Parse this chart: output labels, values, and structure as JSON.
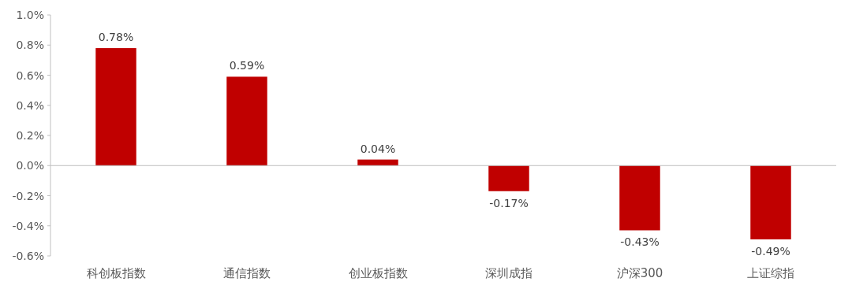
{
  "chart_data": {
    "type": "bar",
    "categories": [
      "科创板指数",
      "通信指数",
      "创业板指数",
      "深圳成指",
      "沪深300",
      "上证综指"
    ],
    "values": [
      0.78,
      0.59,
      0.04,
      -0.17,
      -0.43,
      -0.49
    ],
    "value_labels": [
      "0.78%",
      "0.59%",
      "0.04%",
      "-0.17%",
      "-0.43%",
      "-0.49%"
    ],
    "color": "#c00000",
    "ylim": [
      -0.6,
      1.0
    ],
    "yticks": [
      {
        "value": -0.6,
        "label": "-0.6%"
      },
      {
        "value": -0.4,
        "label": "-0.4%"
      },
      {
        "value": -0.2,
        "label": "-0.2%"
      },
      {
        "value": 0,
        "label": "0.0%"
      },
      {
        "value": 0.2,
        "label": "0.2%"
      },
      {
        "value": 0.4,
        "label": "0.4%"
      },
      {
        "value": 0.6,
        "label": "0.6%"
      },
      {
        "value": 0.8,
        "label": "0.8%"
      },
      {
        "value": 1.0,
        "label": "1.0%"
      }
    ],
    "tick_labels": "xy"
  }
}
